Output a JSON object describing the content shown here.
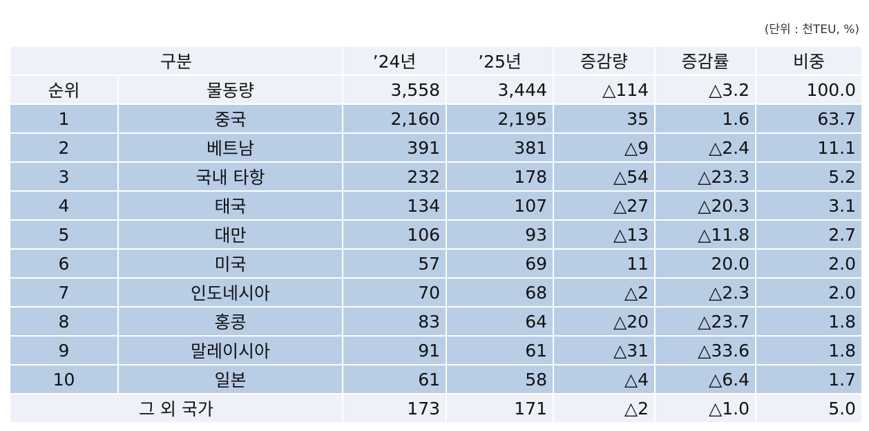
{
  "unit": "(단위 : 천TEU, %)",
  "header": [
    "구분",
    "’24년",
    "’25년",
    "증감량",
    "증감률",
    "비중"
  ],
  "total": [
    "순위",
    "물동량",
    "3,558",
    "3,444",
    "△114",
    "△3.2",
    "100.0"
  ],
  "rows": [
    [
      "1",
      "중국",
      "2,160",
      "2,195",
      "35",
      "1.6",
      "63.7"
    ],
    [
      "2",
      "베트남",
      "391",
      "381",
      "△9",
      "△2.4",
      "11.1"
    ],
    [
      "3",
      "국내 타항",
      "232",
      "178",
      "△54",
      "△23.3",
      "5.2"
    ],
    [
      "4",
      "태국",
      "134",
      "107",
      "△27",
      "△20.3",
      "3.1"
    ],
    [
      "5",
      "대만",
      "106",
      "93",
      "△13",
      "△11.8",
      "2.7"
    ],
    [
      "6",
      "미국",
      "57",
      "69",
      "11",
      "20.0",
      "2.0"
    ],
    [
      "7",
      "인도네시아",
      "70",
      "68",
      "△2",
      "△2.3",
      "2.0"
    ],
    [
      "8",
      "홍콩",
      "83",
      "64",
      "△20",
      "△23.7",
      "1.8"
    ],
    [
      "9",
      "말레이시아",
      "91",
      "61",
      "△31",
      "△33.6",
      "1.8"
    ],
    [
      "10",
      "일본",
      "61",
      "58",
      "△4",
      "△6.4",
      "1.7"
    ]
  ],
  "other": [
    "그 외 국가",
    "173",
    "171",
    "△2",
    "△1.0",
    "5.0"
  ]
}
